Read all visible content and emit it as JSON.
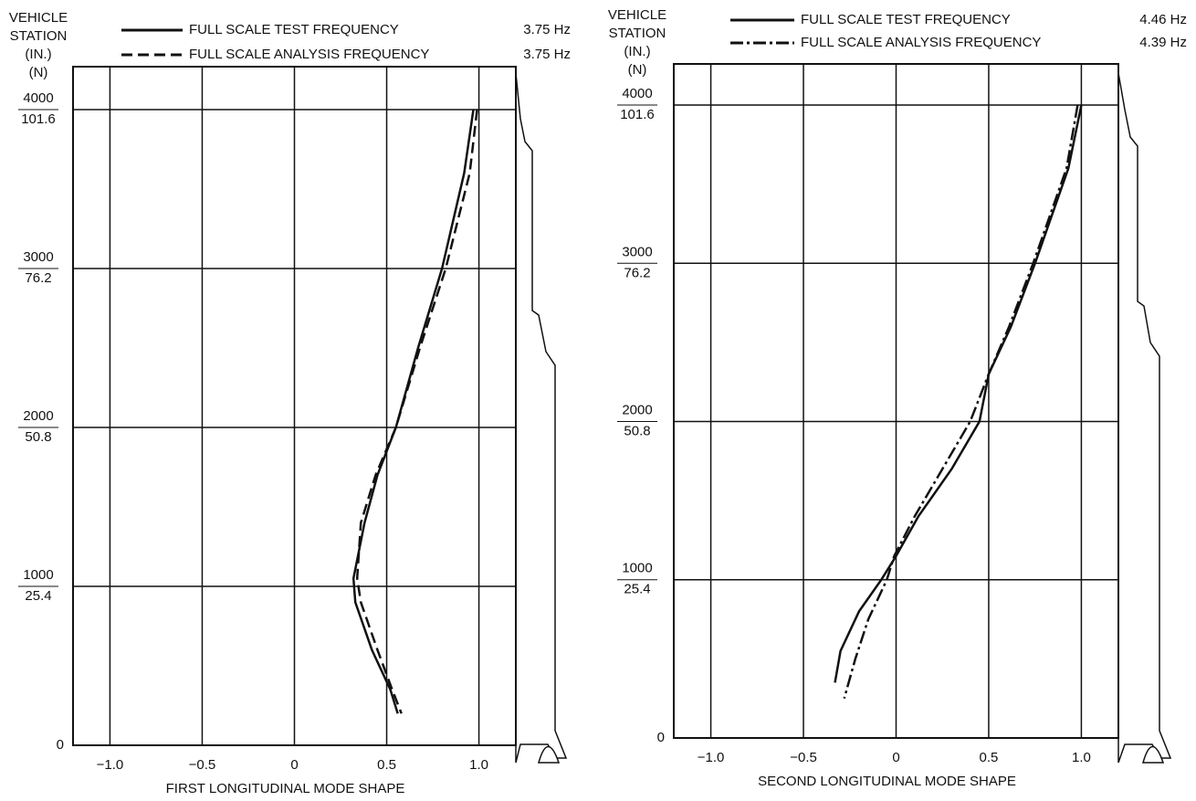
{
  "chart_data": [
    {
      "type": "line",
      "x_label": "FIRST LONGITUDINAL MODE SHAPE",
      "y_label": [
        "VEHICLE",
        "STATION",
        "(IN.)",
        "(N)"
      ],
      "xlim": [
        -1.2,
        1.2
      ],
      "ylim": [
        0,
        4270
      ],
      "xticks": [
        {
          "value": -1,
          "label": "−1.0"
        },
        {
          "value": -0.5,
          "label": "−0.5"
        },
        0,
        0.5,
        {
          "value": 1,
          "label": "1.0"
        }
      ],
      "yticks": [
        0,
        {
          "value": 1000,
          "label": "1000",
          "metric_label": "25.4"
        },
        {
          "value": 2000,
          "label": "2000",
          "metric_label": "50.8"
        },
        {
          "value": 3000,
          "label": "3000",
          "metric_label": "76.2"
        },
        {
          "value": 4000,
          "label": "4000",
          "metric_label": "101.6"
        }
      ],
      "grid": true,
      "series": [
        {
          "name": "FULL SCALE TEST FREQUENCY",
          "frequency": "3.75 Hz",
          "color": "#111111",
          "dash": "solid",
          "x": [
            0.97,
            0.92,
            0.8,
            0.67,
            0.55,
            0.45,
            0.38,
            0.32,
            0.33,
            0.42,
            0.52,
            0.56
          ],
          "values": [
            4000,
            3600,
            3000,
            2500,
            2000,
            1700,
            1400,
            1050,
            900,
            600,
            350,
            200
          ]
        },
        {
          "name": "FULL SCALE ANALYSIS FREQUENCY",
          "frequency": "3.75 Hz",
          "color": "#111111",
          "dash": "dashed",
          "x": [
            0.99,
            0.95,
            0.82,
            0.68,
            0.55,
            0.44,
            0.36,
            0.34,
            0.36,
            0.45,
            0.53,
            0.58
          ],
          "values": [
            4000,
            3600,
            3000,
            2500,
            2000,
            1700,
            1400,
            1050,
            900,
            600,
            350,
            200
          ]
        }
      ]
    },
    {
      "type": "line",
      "x_label": "SECOND LONGITUDINAL MODE SHAPE",
      "y_label": [
        "VEHICLE",
        "STATION",
        "(IN.)",
        "(N)"
      ],
      "xlim": [
        -1.2,
        1.2
      ],
      "ylim": [
        0,
        4260
      ],
      "xticks": [
        {
          "value": -1,
          "label": "−1.0"
        },
        {
          "value": -0.5,
          "label": "−0.5"
        },
        0,
        0.5,
        {
          "value": 1,
          "label": "1.0"
        }
      ],
      "yticks": [
        0,
        {
          "value": 1000,
          "label": "1000",
          "metric_label": "25.4"
        },
        {
          "value": 2000,
          "label": "2000",
          "metric_label": "50.8"
        },
        {
          "value": 3000,
          "label": "3000",
          "metric_label": "76.2"
        },
        {
          "value": 4000,
          "label": "4000",
          "metric_label": "101.6"
        }
      ],
      "grid": true,
      "series": [
        {
          "name": "FULL SCALE TEST FREQUENCY",
          "frequency": "4.46 Hz",
          "color": "#111111",
          "dash": "solid",
          "x": [
            1.0,
            0.93,
            0.75,
            0.62,
            0.5,
            0.45,
            0.3,
            0.12,
            0.0,
            -0.08,
            -0.2,
            -0.3,
            -0.33
          ],
          "values": [
            4000,
            3600,
            3000,
            2600,
            2300,
            2000,
            1700,
            1400,
            1150,
            1000,
            800,
            550,
            350
          ]
        },
        {
          "name": "FULL SCALE ANALYSIS FREQUENCY",
          "frequency": "4.39 Hz",
          "color": "#111111",
          "dash": "dashdot",
          "x": [
            0.98,
            0.92,
            0.74,
            0.61,
            0.5,
            0.4,
            0.25,
            0.1,
            -0.01,
            -0.05,
            -0.15,
            -0.22,
            -0.28
          ],
          "values": [
            4000,
            3600,
            3000,
            2600,
            2300,
            2000,
            1700,
            1400,
            1150,
            1000,
            750,
            500,
            250
          ]
        }
      ]
    }
  ]
}
